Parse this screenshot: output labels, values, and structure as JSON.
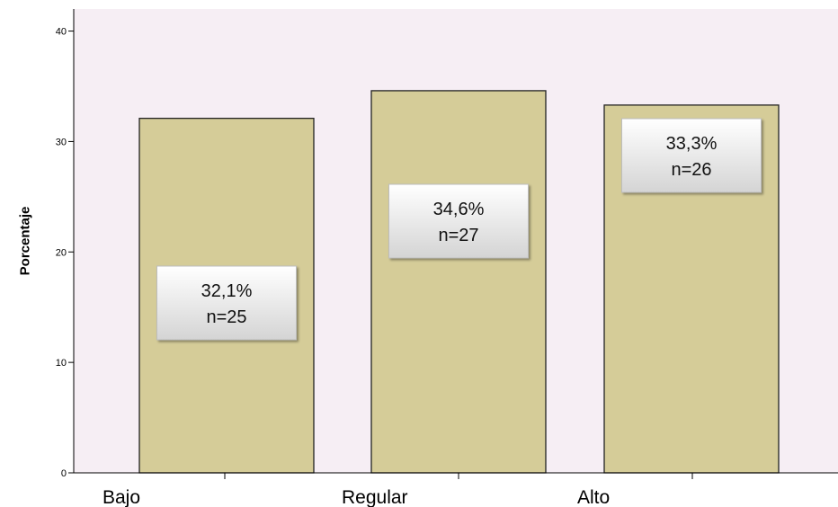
{
  "chart_data": {
    "type": "bar",
    "title": "",
    "xlabel": "",
    "ylabel": "Porcentaje",
    "ylim": [
      0,
      42
    ],
    "yticks": [
      0,
      10,
      20,
      30,
      40
    ],
    "categories": [
      "Bajo",
      "Regular",
      "Alto"
    ],
    "values": [
      32.1,
      34.6,
      33.3
    ],
    "data_labels": [
      {
        "pct": "32,1%",
        "n": "n=25"
      },
      {
        "pct": "34,6%",
        "n": "n=27"
      },
      {
        "pct": "33,3%",
        "n": "n=26"
      }
    ],
    "grid": false,
    "legend": "none",
    "colors": {
      "plot_background": "#f6eef4",
      "bar_fill": "#d5cc98",
      "bar_stroke": "#222222",
      "label_box_top": "#ffffff",
      "label_box_bottom": "#d4d4d4"
    }
  }
}
